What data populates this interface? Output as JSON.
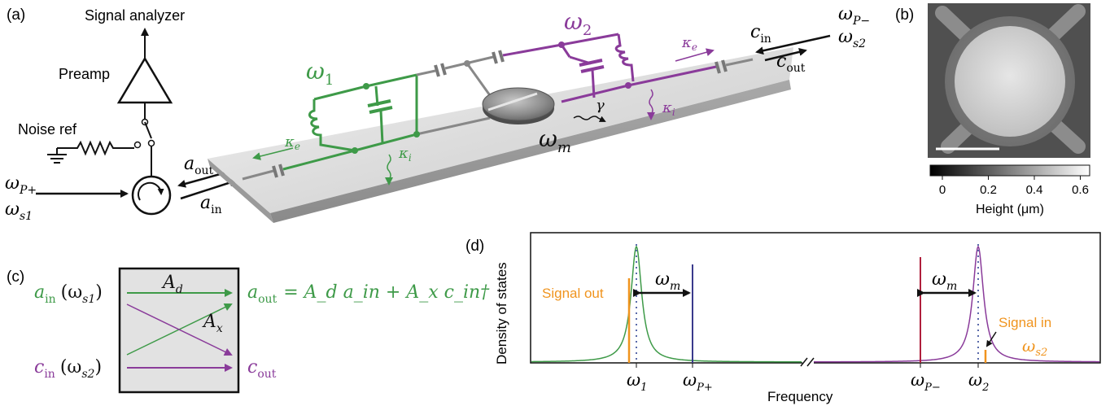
{
  "colors": {
    "green": "#3e9a48",
    "purple": "#8a3b9a",
    "orange": "#f0941e",
    "navy": "#3a3a8c",
    "crimson": "#b01f3c",
    "black": "#111111",
    "board": "#d9d9d9"
  },
  "panel_a": {
    "label": "(a)",
    "signal_analyzer": "Signal analyzer",
    "preamp": "Preamp",
    "noise_ref": "Noise ref",
    "omega_1": "ω",
    "omega_1_sub": "1",
    "omega_2": "ω",
    "omega_2_sub": "2",
    "omega_m": "ω",
    "omega_m_sub": "m",
    "kappa": "κ",
    "kappa_e_sub": "e",
    "kappa_i_sub": "i",
    "gamma": "γ",
    "a_out": "a",
    "a_out_sub": "out",
    "a_in": "a",
    "a_in_sub": "in",
    "c_in": "c",
    "c_in_sub": "in",
    "c_out": "c",
    "c_out_sub": "out",
    "omega_P_plus": "ω",
    "omega_P_plus_sub": "P+",
    "omega_s1": "ω",
    "omega_s1_sub": "s1",
    "omega_P_minus": "ω",
    "omega_P_minus_sub": "P−",
    "omega_s2": "ω",
    "omega_s2_sub": "s2"
  },
  "panel_b": {
    "label": "(b)",
    "colorbar_ticks": [
      "0",
      "0.2",
      "0.4",
      "0.6"
    ],
    "colorbar_label": "Height (μm)"
  },
  "panel_c": {
    "label": "(c)",
    "a_in": "a",
    "a_in_sub": "in",
    "a_in_freq": "(ω",
    "a_in_freq_sub": "s1",
    "c_in": "c",
    "c_in_sub": "in",
    "c_in_freq": "(ω",
    "c_in_freq_sub": "s2",
    "A_d": "A",
    "A_d_sub": "d",
    "A_x": "A",
    "A_x_sub": "x",
    "equation_lhs": "a",
    "equation_lhs_sub": "out",
    "equation_rhs": "= A_d a_in + A_x c_in†",
    "c_out": "c",
    "c_out_sub": "out"
  },
  "panel_d": {
    "label": "(d)",
    "ylabel": "Density of states",
    "xlabel": "Frequency",
    "signal_out": "Signal out",
    "signal_in_line1": "Signal in",
    "signal_in_line2": "ω",
    "signal_in_sub": "s2",
    "omega_m": "ω",
    "omega_m_sub": "m",
    "ticks": [
      {
        "main": "ω",
        "sub": "1"
      },
      {
        "main": "ω",
        "sub": "P+"
      },
      {
        "main": "ω",
        "sub": "P−"
      },
      {
        "main": "ω",
        "sub": "2"
      }
    ]
  }
}
